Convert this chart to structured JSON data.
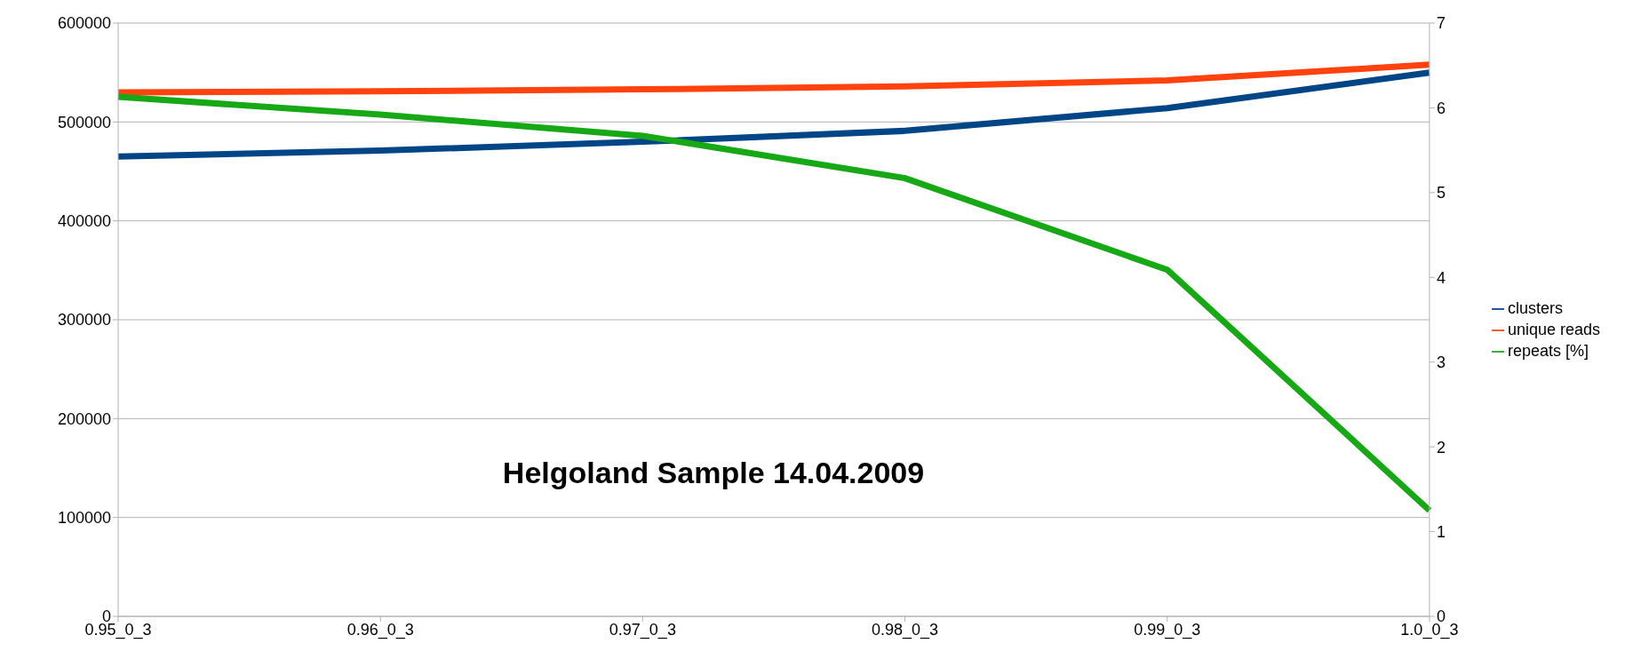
{
  "chart_data": {
    "type": "line",
    "title": "Helgoland Sample 14.04.2009",
    "categories": [
      "0.95_0_3",
      "0.96_0_3",
      "0.97_0_3",
      "0.98_0_3",
      "0.99_0_3",
      "1.0_0_3"
    ],
    "series": [
      {
        "name": "clusters",
        "color": "#004586",
        "values": [
          465000,
          471000,
          480000,
          491000,
          514000,
          550000
        ]
      },
      {
        "name": "unique reads",
        "color": "#ff420e",
        "values": [
          530000,
          531000,
          533000,
          536000,
          542000,
          558000
        ]
      },
      {
        "name": "repeats [%]",
        "color": "#16a815",
        "axis": "y2",
        "values": [
          6.13,
          5.92,
          5.67,
          5.17,
          4.09,
          1.25
        ]
      }
    ],
    "ylim": [
      0,
      600000
    ],
    "yticks": [
      0,
      100000,
      200000,
      300000,
      400000,
      500000,
      600000
    ],
    "y2lim": [
      0,
      7
    ],
    "y2ticks": [
      0,
      1,
      2,
      3,
      4,
      5,
      6,
      7
    ],
    "grid": "y",
    "legend": "right",
    "marker": "none",
    "line_style": "solid"
  }
}
